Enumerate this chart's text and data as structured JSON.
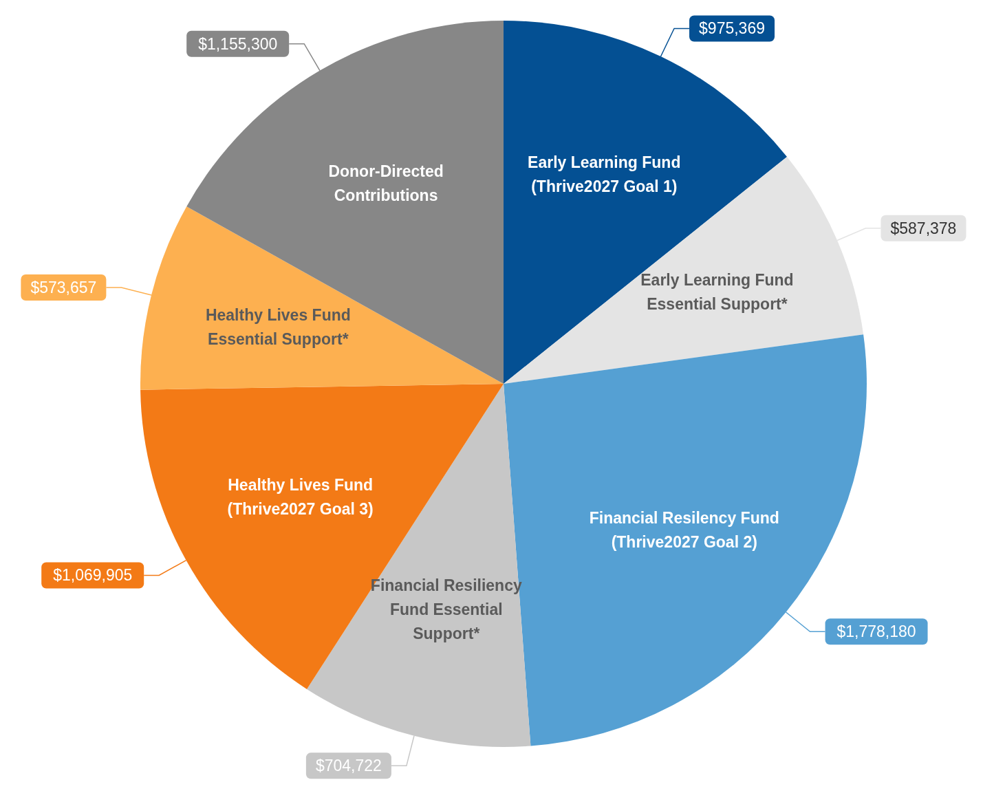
{
  "chart_data": {
    "type": "pie",
    "categories": [
      "Early Learning Fund\n(Thrive2027 Goal 1)",
      "Early Learning Fund\nEssential Support*",
      "Financial Resilency Fund\n(Thrive2027 Goal 2)",
      "Financial Resiliency\nFund Essential\nSupport*",
      "Healthy Lives Fund\n(Thrive2027 Goal 3)",
      "Healthy Lives Fund\nEssential Support*",
      "Donor-Directed\nContributions"
    ],
    "values": [
      975369,
      587378,
      1778180,
      704722,
      1069905,
      573657,
      1155300
    ],
    "colors": [
      "#045093",
      "#e4e4e4",
      "#55a0d3",
      "#c7c7c7",
      "#f37a16",
      "#fdb050",
      "#878787"
    ],
    "value_labels": [
      "$975,369",
      "$587,378",
      "$1,778,180",
      "$704,722",
      "$1,069,905",
      "$573,657",
      "$1,155,300"
    ]
  }
}
